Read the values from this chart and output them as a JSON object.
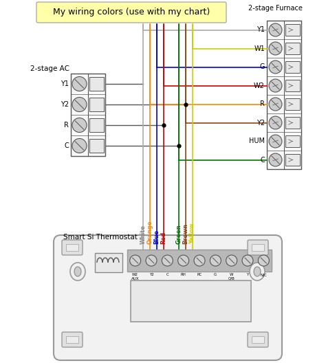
{
  "title": "My wiring colors (use with my chart)",
  "title_color": "#000000",
  "title_bg": "#ffffaa",
  "bg_color": "#ffffff",
  "furnace_label": "2-stage Furnace",
  "ac_label": "2-stage AC",
  "thermostat_label": "Smart Si Thermostat",
  "furnace_terminals": [
    "Y1",
    "W1",
    "G",
    "W2",
    "R",
    "Y2",
    "HUM",
    "C"
  ],
  "ac_terminals": [
    "Y1",
    "Y2",
    "R",
    "C"
  ],
  "thermostat_terminals": [
    "W2\nAUX",
    "Y2",
    "C",
    "RH",
    "RC",
    "G",
    "W\nO/B",
    "Y",
    "N/C"
  ],
  "wire_hex": [
    "#aaaaaa",
    "#ff8800",
    "#0000dd",
    "#cc0000",
    "#007700",
    "#8b4513",
    "#cccc00"
  ],
  "wire_labels": [
    "White",
    "Orange",
    "Blue",
    "Red",
    "Green",
    "Brown",
    "Yellow"
  ],
  "wire_label_colors": [
    "#888888",
    "#ff8800",
    "#0000dd",
    "#cc0000",
    "#007700",
    "#8b4513",
    "#cccc00"
  ],
  "line_color": "#555555",
  "term_fill": "#e0e0e0",
  "term_edge": "#555555"
}
